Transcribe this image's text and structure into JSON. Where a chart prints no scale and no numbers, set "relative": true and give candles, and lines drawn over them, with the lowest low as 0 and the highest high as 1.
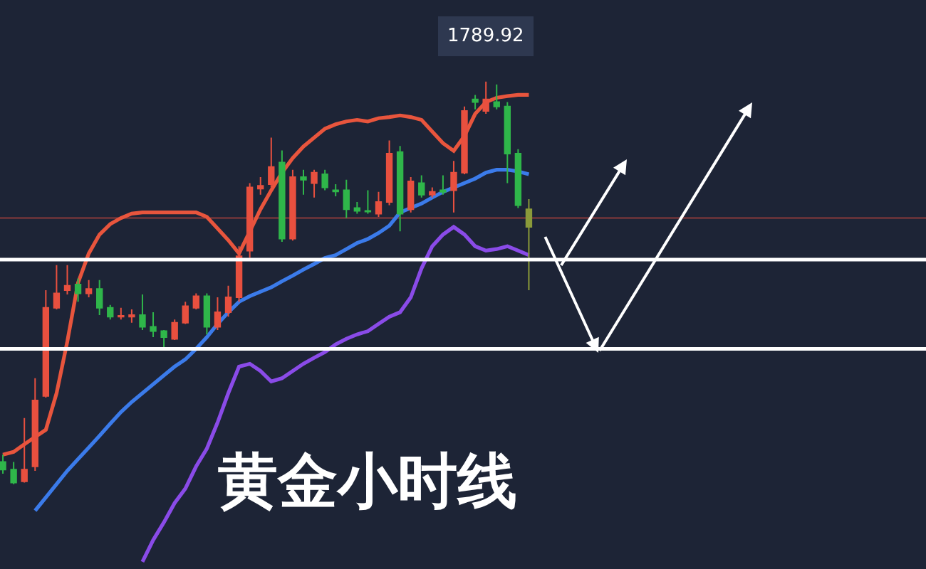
{
  "chart_data": {
    "type": "candlestick",
    "title": "黄金小时线",
    "relative": true,
    "categories": [
      null,
      null,
      null,
      null,
      null,
      null,
      null,
      null,
      null,
      null,
      null,
      null,
      null,
      null,
      null,
      null,
      null,
      null,
      null,
      null,
      null,
      null,
      null,
      null,
      null,
      null,
      null,
      null,
      null,
      null,
      null,
      null,
      null,
      null,
      null,
      null,
      null,
      null,
      null,
      null,
      null,
      null,
      null,
      null,
      null,
      null,
      null,
      null,
      null,
      null
    ],
    "ohlc": [
      [
        0.055,
        0.073,
        0.026,
        0.036
      ],
      [
        0.036,
        0.055,
        0,
        0.004
      ],
      [
        0.007,
        0.164,
        0.004,
        0.036
      ],
      [
        0.044,
        0.263,
        0.033,
        0.208
      ],
      [
        0.219,
        0.482,
        0.215,
        0.438
      ],
      [
        0.438,
        0.544,
        0.434,
        0.474
      ],
      [
        0.482,
        0.544,
        0.471,
        0.493
      ],
      [
        0.496,
        0.511,
        0.453,
        0.474
      ],
      [
        0.474,
        0.507,
        0.464,
        0.485
      ],
      [
        0.485,
        0.507,
        0.42,
        0.438
      ],
      [
        0.438,
        0.445,
        0.409,
        0.416
      ],
      [
        0.416,
        0.438,
        0.409,
        0.418
      ],
      [
        0.416,
        0.434,
        0.401,
        0.42
      ],
      [
        0.42,
        0.471,
        0.383,
        0.391
      ],
      [
        0.391,
        0.427,
        0.365,
        0.38
      ],
      [
        0.38,
        0.383,
        0.336,
        0.365
      ],
      [
        0.361,
        0.409,
        0.358,
        0.401
      ],
      [
        0.401,
        0.453,
        0.398,
        0.442
      ],
      [
        0.438,
        0.474,
        0.434,
        0.467
      ],
      [
        0.467,
        0.474,
        0.372,
        0.391
      ],
      [
        0.391,
        0.464,
        0.383,
        0.427
      ],
      [
        0.427,
        0.493,
        0.416,
        0.464
      ],
      [
        0.464,
        0.591,
        0.453,
        0.566
      ],
      [
        0.58,
        0.748,
        0.562,
        0.737
      ],
      [
        0.734,
        0.763,
        0.719,
        0.741
      ],
      [
        0.745,
        0.861,
        0.737,
        0.788
      ],
      [
        0.799,
        0.829,
        0.602,
        0.61
      ],
      [
        0.61,
        0.781,
        0.605,
        0.763
      ],
      [
        0.763,
        0.781,
        0.719,
        0.756
      ],
      [
        0.748,
        0.781,
        0.712,
        0.774
      ],
      [
        0.77,
        0.781,
        0.73,
        0.737
      ],
      [
        0.73,
        0.745,
        0.715,
        0.727
      ],
      [
        0.73,
        0.756,
        0.661,
        0.683
      ],
      [
        0.686,
        0.701,
        0.672,
        0.679
      ],
      [
        0.679,
        0.73,
        0.672,
        0.677
      ],
      [
        0.672,
        0.726,
        0.664,
        0.701
      ],
      [
        0.701,
        0.854,
        0.693,
        0.821
      ],
      [
        0.825,
        0.84,
        0.628,
        0.672
      ],
      [
        0.683,
        0.763,
        0.675,
        0.752
      ],
      [
        0.748,
        0.767,
        0.712,
        0.719
      ],
      [
        0.719,
        0.737,
        0.712,
        0.726
      ],
      [
        0.73,
        0.767,
        0.719,
        0.726
      ],
      [
        0.73,
        0.803,
        0.675,
        0.774
      ],
      [
        0.774,
        0.938,
        0.77,
        0.927
      ],
      [
        0.956,
        0.967,
        0.931,
        0.949
      ],
      [
        0.927,
        1,
        0.92,
        0.956
      ],
      [
        0.949,
        0.993,
        0.931,
        0.938
      ],
      [
        0.938,
        0.949,
        0.748,
        0.821
      ],
      [
        0.821,
        0.832,
        0.686,
        0.693
      ],
      [
        0.683,
        0.708,
        0.482,
        0.639
      ]
    ],
    "colors": [
      "#2fb64a",
      "#2fb64a",
      "#e8503f",
      "#e8503f",
      "#e8503f",
      "#e8503f",
      "#e8503f",
      "#2fb64a",
      "#e8503f",
      "#2fb64a",
      "#2fb64a",
      "#e8503f",
      "#e8503f",
      "#2fb64a",
      "#2fb64a",
      "#2fb64a",
      "#e8503f",
      "#e8503f",
      "#e8503f",
      "#2fb64a",
      "#e8503f",
      "#e8503f",
      "#e8503f",
      "#e8503f",
      "#e8503f",
      "#e8503f",
      "#2fb64a",
      "#e8503f",
      "#2fb64a",
      "#e8503f",
      "#2fb64a",
      "#2fb64a",
      "#2fb64a",
      "#2fb64a",
      "#2fb64a",
      "#e8503f",
      "#e8503f",
      "#2fb64a",
      "#e8503f",
      "#2fb64a",
      "#e8503f",
      "#2fb64a",
      "#e8503f",
      "#e8503f",
      "#2fb64a",
      "#e8503f",
      "#2fb64a",
      "#2fb64a",
      "#2fb64a",
      "#8a9a3a"
    ],
    "series": [
      {
        "type": "line",
        "color": "#e8553d",
        "values": [
          0.073,
          0.08,
          0.099,
          0.117,
          0.135,
          0.226,
          0.354,
          0.5,
          0.573,
          0.62,
          0.646,
          0.661,
          0.672,
          0.675,
          0.675,
          0.675,
          0.675,
          0.675,
          0.675,
          0.664,
          0.635,
          0.606,
          0.573,
          0.628,
          0.683,
          0.73,
          0.774,
          0.81,
          0.839,
          0.861,
          0.883,
          0.894,
          0.901,
          0.905,
          0.901,
          0.909,
          0.912,
          0.916,
          0.912,
          0.905,
          0.876,
          0.847,
          0.828,
          0.865,
          0.92,
          0.949,
          0.96,
          0.964,
          0.967,
          0.967
        ]
      },
      {
        "type": "line",
        "color": "#3b7bea",
        "values": [
          null,
          null,
          null,
          -0.066,
          -0.033,
          0,
          0.033,
          0.062,
          0.091,
          0.12,
          0.15,
          0.179,
          0.204,
          0.226,
          0.248,
          0.27,
          0.292,
          0.31,
          0.336,
          0.365,
          0.398,
          0.427,
          0.453,
          0.467,
          0.478,
          0.489,
          0.504,
          0.518,
          0.533,
          0.547,
          0.562,
          0.569,
          0.584,
          0.599,
          0.609,
          0.624,
          0.642,
          0.675,
          0.686,
          0.697,
          0.712,
          0.726,
          0.737,
          0.748,
          0.759,
          0.774,
          0.781,
          0.781,
          0.777,
          0.77
        ]
      },
      {
        "type": "line",
        "color": "#8a4be8",
        "values": [
          null,
          null,
          null,
          null,
          null,
          null,
          null,
          null,
          null,
          null,
          null,
          null,
          null,
          -0.193,
          -0.139,
          -0.095,
          -0.047,
          -0.011,
          0.044,
          0.088,
          0.153,
          0.226,
          0.292,
          0.299,
          0.281,
          0.255,
          0.263,
          0.281,
          0.299,
          0.314,
          0.328,
          0.347,
          0.361,
          0.372,
          0.38,
          0.398,
          0.416,
          0.427,
          0.464,
          0.536,
          0.591,
          0.62,
          0.639,
          0.62,
          0.591,
          0.58,
          0.584,
          0.591,
          0.58,
          0.569
        ]
      }
    ],
    "ref_lines": [
      {
        "axis": "y",
        "value": 0.661,
        "color": "#8a3a3a"
      },
      {
        "axis": "y",
        "value": 0.558,
        "color": "#ffffff"
      },
      {
        "axis": "y",
        "value": 0.336,
        "color": "#ffffff"
      }
    ],
    "annotations": [
      {
        "text": "1789.92",
        "y": 1
      }
    ]
  }
}
